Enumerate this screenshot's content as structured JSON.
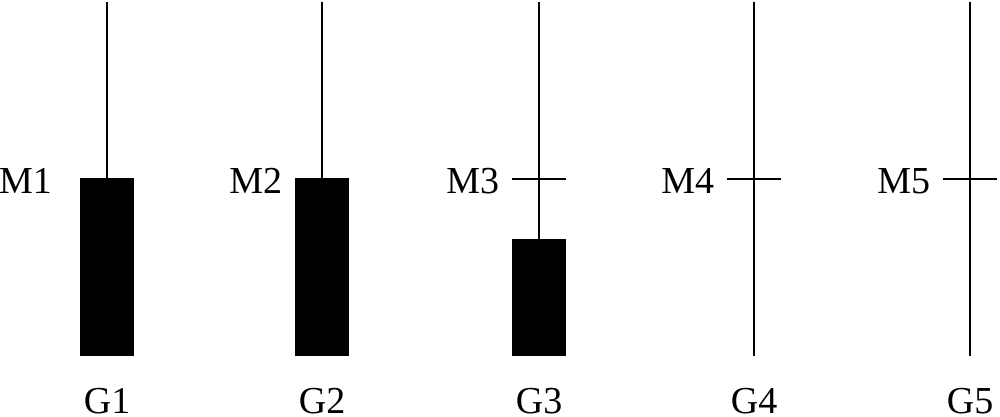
{
  "columns": [
    {
      "top_label": "M1",
      "bottom_label": "G1",
      "fill": 1.0
    },
    {
      "top_label": "M2",
      "bottom_label": "G2",
      "fill": 1.0
    },
    {
      "top_label": "M3",
      "bottom_label": "G3",
      "fill": 0.66
    },
    {
      "top_label": "M4",
      "bottom_label": "G4",
      "fill": 0.0
    },
    {
      "top_label": "M5",
      "bottom_label": "G5",
      "fill": 0.0
    }
  ],
  "colors": {
    "stroke": "#000000",
    "bar": "#000000",
    "background": "#ffffff"
  }
}
